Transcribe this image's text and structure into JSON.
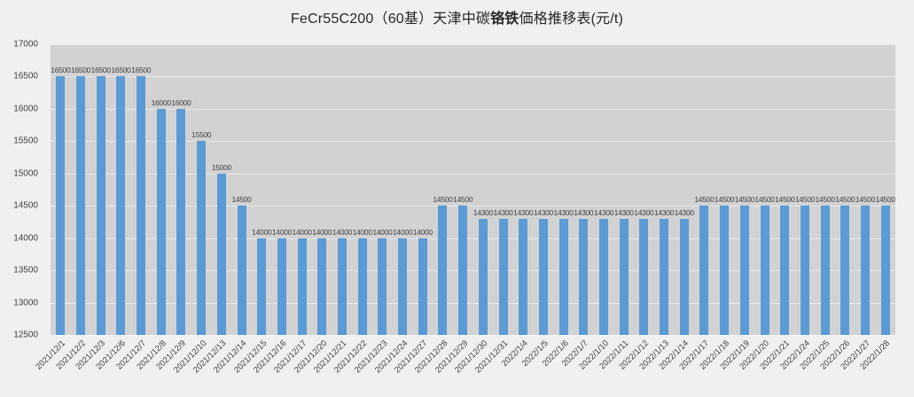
{
  "title": {
    "prefix": "FeCr55C200（60基）天津中碳",
    "emphasis": "铬铁",
    "suffix": "価格推移表(元/t)"
  },
  "chart_data": {
    "type": "bar",
    "title": "FeCr55C200（60基）天津中碳铬铁価格推移表(元/t)",
    "categories": [
      "2021/12/1",
      "2021/12/2",
      "2021/12/3",
      "2021/12/6",
      "2021/12/7",
      "2021/12/8",
      "2021/12/9",
      "2021/12/10",
      "2021/12/13",
      "2021/12/14",
      "2021/12/15",
      "2021/12/16",
      "2021/12/17",
      "2021/12/20",
      "2021/12/21",
      "2021/12/22",
      "2021/12/23",
      "2021/12/24",
      "2021/12/27",
      "2021/12/28",
      "2021/12/29",
      "2021/12/30",
      "2021/12/31",
      "2022/1/4",
      "2022/1/5",
      "2022/1/6",
      "2022/1/7",
      "2022/1/10",
      "2022/1/11",
      "2022/1/12",
      "2022/1/13",
      "2022/1/14",
      "2022/1/17",
      "2022/1/18",
      "2022/1/19",
      "2022/1/20",
      "2022/1/21",
      "2022/1/24",
      "2022/1/25",
      "2022/1/26",
      "2022/1/27",
      "2022/1/28"
    ],
    "values": [
      16500,
      16500,
      16500,
      16500,
      16500,
      16000,
      16000,
      15500,
      15000,
      14500,
      14000,
      14000,
      14000,
      14000,
      14000,
      14000,
      14000,
      14000,
      14000,
      14500,
      14500,
      14300,
      14300,
      14300,
      14300,
      14300,
      14300,
      14300,
      14300,
      14300,
      14300,
      14300,
      14500,
      14500,
      14500,
      14500,
      14500,
      14500,
      14500,
      14500,
      14500,
      14500
    ],
    "xlabel": "",
    "ylabel": "",
    "ylim": [
      12500,
      17000
    ],
    "ytick_step": 500,
    "yticks": [
      12500,
      13000,
      13500,
      14000,
      14500,
      15000,
      15500,
      16000,
      16500,
      17000
    ],
    "data_labels": true,
    "grid": true,
    "legend": "none",
    "colors": {
      "bar": "#5B9BD5",
      "plot_bg": "#D2D2D2",
      "page_bg": "#F0F0F0",
      "gridline": "rgba(255,255,255,0.5)",
      "text": "#3F3F3F"
    }
  }
}
